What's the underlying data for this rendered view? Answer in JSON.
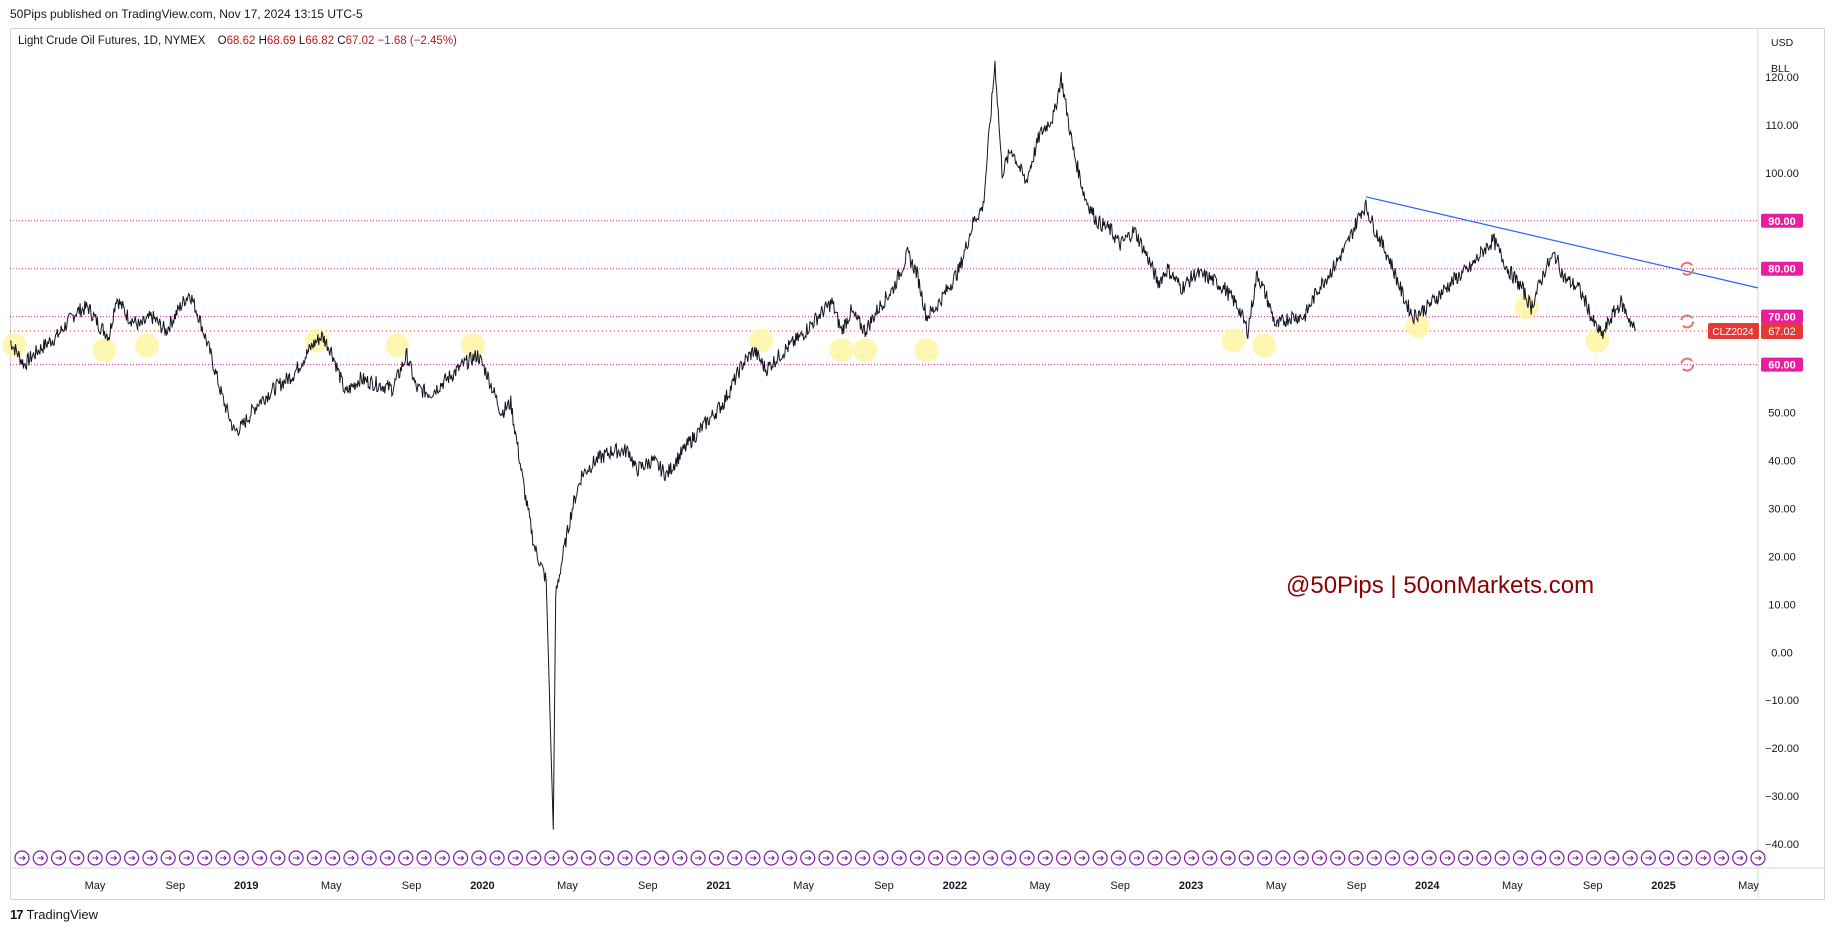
{
  "publish_info": "50Pips published on TradingView.com, Nov 17, 2024 13:15 UTC-5",
  "legend": {
    "symbol": "Light Crude Oil Futures, 1D, NYMEX",
    "open_label": "O",
    "open": "68.62",
    "high_label": "H",
    "high": "68.69",
    "low_label": "L",
    "low": "66.82",
    "close_label": "C",
    "close": "67.02",
    "change": "−1.68 (−2.45%)"
  },
  "units": {
    "currency": "USD",
    "unit": "BLL"
  },
  "watermark": "@50Pips | 50onMarkets.com",
  "footer": {
    "brand": "TradingView"
  },
  "colors": {
    "accent_level": "#e91e9f",
    "trendline": "#2962ff",
    "price_tag": "#e53935",
    "highlight": "#fff59d",
    "event_marker": "#7b1fa2",
    "candle": "#131722"
  },
  "chart_data": {
    "type": "line",
    "title": "Light Crude Oil Futures, 1D, NYMEX",
    "ylim": [
      -45,
      130
    ],
    "yticks": [
      120,
      110,
      100,
      90,
      80,
      70,
      60,
      50,
      40,
      30,
      20,
      10,
      0,
      -10,
      -20,
      -30,
      -40
    ],
    "ytick_labels": [
      "120.00",
      "110.00",
      "100.00",
      "90.00",
      "80.00",
      "70.00",
      "60.00",
      "50.00",
      "40.00",
      "30.00",
      "20.00",
      "10.00",
      "0.00",
      "−10.00",
      "−20.00",
      "−30.00",
      "−40.00"
    ],
    "xlim": [
      2018.0,
      2025.4
    ],
    "xticks": [
      {
        "t": 2018.36,
        "label": "May",
        "bold": false
      },
      {
        "t": 2018.7,
        "label": "Sep",
        "bold": false
      },
      {
        "t": 2019.0,
        "label": "2019",
        "bold": true
      },
      {
        "t": 2019.36,
        "label": "May",
        "bold": false
      },
      {
        "t": 2019.7,
        "label": "Sep",
        "bold": false
      },
      {
        "t": 2020.0,
        "label": "2020",
        "bold": true
      },
      {
        "t": 2020.36,
        "label": "May",
        "bold": false
      },
      {
        "t": 2020.7,
        "label": "Sep",
        "bold": false
      },
      {
        "t": 2021.0,
        "label": "2021",
        "bold": true
      },
      {
        "t": 2021.36,
        "label": "May",
        "bold": false
      },
      {
        "t": 2021.7,
        "label": "Sep",
        "bold": false
      },
      {
        "t": 2022.0,
        "label": "2022",
        "bold": true
      },
      {
        "t": 2022.36,
        "label": "May",
        "bold": false
      },
      {
        "t": 2022.7,
        "label": "Sep",
        "bold": false
      },
      {
        "t": 2023.0,
        "label": "2023",
        "bold": true
      },
      {
        "t": 2023.36,
        "label": "May",
        "bold": false
      },
      {
        "t": 2023.7,
        "label": "Sep",
        "bold": false
      },
      {
        "t": 2024.0,
        "label": "2024",
        "bold": true
      },
      {
        "t": 2024.36,
        "label": "May",
        "bold": false
      },
      {
        "t": 2024.7,
        "label": "Sep",
        "bold": false
      },
      {
        "t": 2025.0,
        "label": "2025",
        "bold": true
      },
      {
        "t": 2025.36,
        "label": "May",
        "bold": false
      }
    ],
    "price_path": [
      [
        2018.0,
        65
      ],
      [
        2018.06,
        60
      ],
      [
        2018.12,
        63
      ],
      [
        2018.2,
        66
      ],
      [
        2018.28,
        71
      ],
      [
        2018.33,
        72
      ],
      [
        2018.38,
        68
      ],
      [
        2018.42,
        66
      ],
      [
        2018.45,
        74
      ],
      [
        2018.5,
        70
      ],
      [
        2018.55,
        68
      ],
      [
        2018.6,
        70
      ],
      [
        2018.66,
        67
      ],
      [
        2018.72,
        72
      ],
      [
        2018.76,
        75
      ],
      [
        2018.8,
        70
      ],
      [
        2018.85,
        62
      ],
      [
        2018.9,
        53
      ],
      [
        2018.95,
        46
      ],
      [
        2018.98,
        47
      ],
      [
        2019.05,
        52
      ],
      [
        2019.12,
        55
      ],
      [
        2019.2,
        58
      ],
      [
        2019.28,
        64
      ],
      [
        2019.32,
        66
      ],
      [
        2019.36,
        63
      ],
      [
        2019.42,
        54
      ],
      [
        2019.48,
        57
      ],
      [
        2019.55,
        56
      ],
      [
        2019.62,
        55
      ],
      [
        2019.68,
        62
      ],
      [
        2019.72,
        55
      ],
      [
        2019.78,
        54
      ],
      [
        2019.85,
        57
      ],
      [
        2019.92,
        60
      ],
      [
        2019.98,
        62
      ],
      [
        2020.02,
        58
      ],
      [
        2020.08,
        50
      ],
      [
        2020.12,
        52
      ],
      [
        2020.18,
        33
      ],
      [
        2020.22,
        22
      ],
      [
        2020.27,
        15
      ],
      [
        2020.3,
        -37
      ],
      [
        2020.31,
        12
      ],
      [
        2020.34,
        20
      ],
      [
        2020.38,
        30
      ],
      [
        2020.42,
        37
      ],
      [
        2020.48,
        40
      ],
      [
        2020.55,
        42
      ],
      [
        2020.62,
        42
      ],
      [
        2020.65,
        38
      ],
      [
        2020.72,
        40
      ],
      [
        2020.78,
        37
      ],
      [
        2020.82,
        40
      ],
      [
        2020.88,
        44
      ],
      [
        2020.95,
        48
      ],
      [
        2021.02,
        52
      ],
      [
        2021.1,
        60
      ],
      [
        2021.15,
        63
      ],
      [
        2021.2,
        59
      ],
      [
        2021.28,
        63
      ],
      [
        2021.35,
        66
      ],
      [
        2021.42,
        70
      ],
      [
        2021.48,
        73
      ],
      [
        2021.52,
        67
      ],
      [
        2021.56,
        71
      ],
      [
        2021.62,
        67
      ],
      [
        2021.68,
        72
      ],
      [
        2021.74,
        76
      ],
      [
        2021.8,
        83
      ],
      [
        2021.84,
        79
      ],
      [
        2021.88,
        70
      ],
      [
        2021.92,
        72
      ],
      [
        2021.96,
        75
      ],
      [
        2022.02,
        80
      ],
      [
        2022.08,
        90
      ],
      [
        2022.12,
        93
      ],
      [
        2022.17,
        123
      ],
      [
        2022.2,
        100
      ],
      [
        2022.24,
        105
      ],
      [
        2022.3,
        98
      ],
      [
        2022.36,
        108
      ],
      [
        2022.42,
        112
      ],
      [
        2022.45,
        120
      ],
      [
        2022.5,
        105
      ],
      [
        2022.55,
        95
      ],
      [
        2022.6,
        90
      ],
      [
        2022.66,
        88
      ],
      [
        2022.7,
        85
      ],
      [
        2022.76,
        88
      ],
      [
        2022.82,
        82
      ],
      [
        2022.86,
        77
      ],
      [
        2022.9,
        80
      ],
      [
        2022.96,
        76
      ],
      [
        2023.02,
        79
      ],
      [
        2023.08,
        78
      ],
      [
        2023.14,
        76
      ],
      [
        2023.2,
        72
      ],
      [
        2023.24,
        67
      ],
      [
        2023.28,
        79
      ],
      [
        2023.32,
        74
      ],
      [
        2023.36,
        68
      ],
      [
        2023.42,
        70
      ],
      [
        2023.48,
        70
      ],
      [
        2023.54,
        76
      ],
      [
        2023.6,
        80
      ],
      [
        2023.66,
        85
      ],
      [
        2023.72,
        92
      ],
      [
        2023.74,
        93
      ],
      [
        2023.78,
        88
      ],
      [
        2023.84,
        82
      ],
      [
        2023.9,
        74
      ],
      [
        2023.94,
        70
      ],
      [
        2024.0,
        72
      ],
      [
        2024.06,
        75
      ],
      [
        2024.12,
        78
      ],
      [
        2024.18,
        80
      ],
      [
        2024.24,
        84
      ],
      [
        2024.28,
        86
      ],
      [
        2024.34,
        80
      ],
      [
        2024.4,
        76
      ],
      [
        2024.44,
        72
      ],
      [
        2024.5,
        80
      ],
      [
        2024.54,
        83
      ],
      [
        2024.58,
        78
      ],
      [
        2024.64,
        76
      ],
      [
        2024.68,
        72
      ],
      [
        2024.7,
        69
      ],
      [
        2024.74,
        66
      ],
      [
        2024.78,
        70
      ],
      [
        2024.82,
        73
      ],
      [
        2024.85,
        70
      ],
      [
        2024.88,
        67
      ]
    ],
    "horizontal_levels": [
      {
        "value": 90,
        "label": "90.00"
      },
      {
        "value": 80,
        "label": "80.00"
      },
      {
        "value": 70,
        "label": "70.00"
      },
      {
        "value": 60,
        "label": "60.00"
      }
    ],
    "current_price_line": 67.02,
    "current_price_tag": {
      "symbol": "CLZ2024",
      "value": "67.02"
    },
    "trendline": {
      "from": [
        2023.74,
        95
      ],
      "to": [
        2025.4,
        76
      ]
    },
    "support_highlights": [
      {
        "t": 2018.02,
        "value": 64
      },
      {
        "t": 2018.4,
        "value": 63
      },
      {
        "t": 2018.58,
        "value": 64
      },
      {
        "t": 2019.3,
        "value": 65
      },
      {
        "t": 2019.64,
        "value": 64
      },
      {
        "t": 2019.96,
        "value": 64
      },
      {
        "t": 2021.18,
        "value": 65
      },
      {
        "t": 2021.52,
        "value": 63
      },
      {
        "t": 2021.62,
        "value": 63
      },
      {
        "t": 2021.88,
        "value": 63
      },
      {
        "t": 2023.18,
        "value": 65
      },
      {
        "t": 2023.31,
        "value": 64
      },
      {
        "t": 2023.96,
        "value": 68
      },
      {
        "t": 2024.42,
        "value": 72
      },
      {
        "t": 2024.72,
        "value": 65
      }
    ],
    "alert_markers": [
      {
        "t": 2025.1,
        "value": 80
      },
      {
        "t": 2025.1,
        "value": 69
      },
      {
        "t": 2025.1,
        "value": 60
      }
    ],
    "event_marker_count": 96,
    "grid": false
  }
}
